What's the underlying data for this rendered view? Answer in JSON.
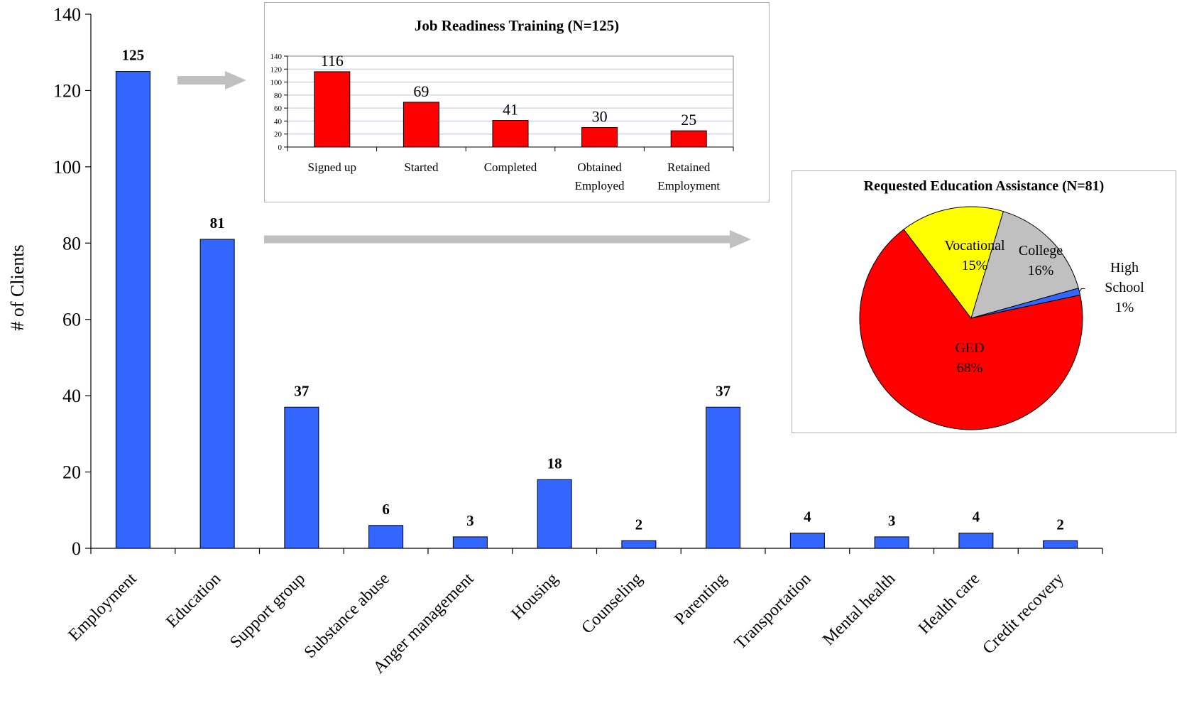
{
  "chart_data": [
    {
      "type": "bar",
      "title": "",
      "xlabel": "",
      "ylabel": "# of Clients",
      "ylim": [
        0,
        140
      ],
      "yticks": [
        0,
        20,
        40,
        60,
        80,
        100,
        120,
        140
      ],
      "categories": [
        "Employment",
        "Education",
        "Support group",
        "Substance abuse",
        "Anger management",
        "Housing",
        "Counseling",
        "Parenting",
        "Transportation",
        "Mental health",
        "Health care",
        "Credit recovery"
      ],
      "values": [
        125,
        81,
        37,
        6,
        3,
        18,
        2,
        37,
        4,
        3,
        4,
        2
      ],
      "color": "#3366ff",
      "grid": false,
      "data_labels": true
    },
    {
      "type": "bar",
      "title": "Job Readiness Training (N=125)",
      "xlabel": "",
      "ylabel": "",
      "ylim": [
        0,
        140
      ],
      "yticks": [
        0,
        20,
        40,
        60,
        80,
        100,
        120,
        140
      ],
      "categories": [
        [
          "Signed up"
        ],
        [
          "Started"
        ],
        [
          "Completed"
        ],
        [
          "Obtained",
          "Employed"
        ],
        [
          "Retained",
          "Employment"
        ]
      ],
      "values": [
        116,
        69,
        41,
        30,
        25
      ],
      "color": "#ff0000",
      "grid": true,
      "data_labels": true
    },
    {
      "type": "pie",
      "title": "Requested Education Assistance (N=81)",
      "slices": [
        {
          "label": "GED",
          "percent": 68,
          "display": "68%",
          "color": "#ff0000"
        },
        {
          "label": "Vocational",
          "percent": 15,
          "display": "15%",
          "color": "#ffff00"
        },
        {
          "label": "College",
          "percent": 16,
          "display": "16%",
          "color": "#c0c0c0"
        },
        {
          "label": "High School",
          "percent": 1,
          "display": "1%",
          "color": "#3366ff"
        }
      ]
    }
  ],
  "arrow_color": "#c0c0c0"
}
